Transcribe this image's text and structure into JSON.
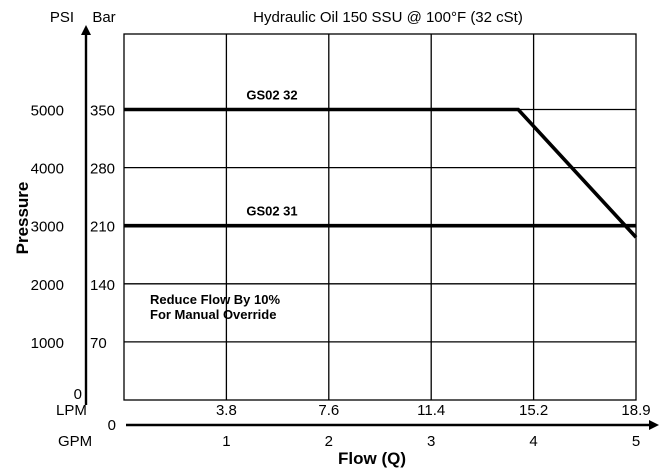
{
  "chart_data": {
    "type": "line",
    "title": "Hydraulic Oil 150 SSU @ 100°F (32 cSt)",
    "xlabel": "Flow (Q)",
    "ylabel": "Pressure",
    "x_unit_primary": "LPM",
    "x_unit_secondary": "GPM",
    "y_unit_primary": "PSI",
    "y_unit_secondary": "Bar",
    "x_origin_label": "0",
    "y_origin_label": "0",
    "xlim_gpm": [
      0,
      5
    ],
    "ylim_psi": [
      0,
      6300
    ],
    "grid": true,
    "x_ticks_lpm": [
      "3.8",
      "7.6",
      "11.4",
      "15.2",
      "18.9"
    ],
    "x_ticks_gpm": [
      "1",
      "2",
      "3",
      "4",
      "5"
    ],
    "x_ticks_gpm_values": [
      1,
      2,
      3,
      4,
      5
    ],
    "y_ticks_psi": [
      "1000",
      "2000",
      "3000",
      "4000",
      "5000"
    ],
    "y_ticks_bar": [
      "70",
      "140",
      "210",
      "280",
      "350"
    ],
    "y_ticks_psi_values": [
      1000,
      2000,
      3000,
      4000,
      5000
    ],
    "series": [
      {
        "name": "GS02 32",
        "x": [
          0.0,
          3.85,
          5.0
        ],
        "y": [
          5000,
          5000,
          2800
        ]
      },
      {
        "name": "GS02 31",
        "x": [
          0.0,
          5.0
        ],
        "y": [
          3000,
          3000
        ]
      }
    ],
    "annotations": [
      "Reduce Flow By 10%",
      "For Manual Override"
    ]
  }
}
